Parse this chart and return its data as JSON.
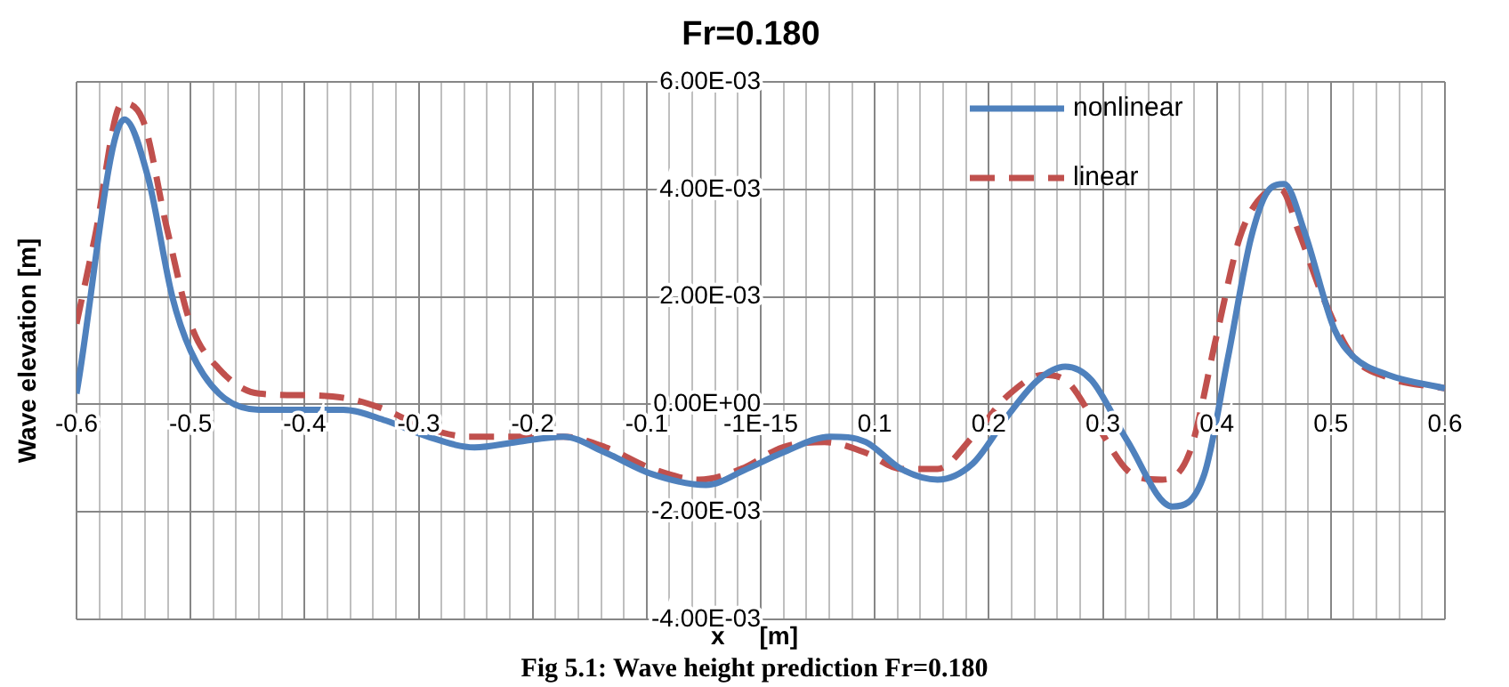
{
  "chart_data": {
    "type": "line",
    "title": "Fr=0.180",
    "xlabel": "x     [m]",
    "ylabel": "Wave elevation [m]",
    "annotations": [
      "Fig 5.1: Wave height prediction Fr=0.180"
    ],
    "xlim": [
      -0.6,
      0.6
    ],
    "ylim": [
      -0.004,
      0.006
    ],
    "xticks": [
      -0.6,
      {
        "value": -0.58,
        "label": null
      },
      {
        "value": -0.56,
        "label": null
      },
      {
        "value": -0.54,
        "label": null
      },
      {
        "value": -0.52,
        "label": null
      },
      -0.5,
      {
        "value": -0.48,
        "label": null
      },
      {
        "value": -0.46,
        "label": null
      },
      {
        "value": -0.44,
        "label": null
      },
      {
        "value": -0.42,
        "label": null
      },
      -0.4,
      {
        "value": -0.38,
        "label": null
      },
      {
        "value": -0.36,
        "label": null
      },
      {
        "value": -0.34,
        "label": null
      },
      {
        "value": -0.32,
        "label": null
      },
      -0.3,
      {
        "value": -0.28,
        "label": null
      },
      {
        "value": -0.26,
        "label": null
      },
      {
        "value": -0.24,
        "label": null
      },
      {
        "value": -0.22,
        "label": null
      },
      -0.2,
      {
        "value": -0.18,
        "label": null
      },
      {
        "value": -0.16,
        "label": null
      },
      {
        "value": -0.14,
        "label": null
      },
      {
        "value": -0.12,
        "label": null
      },
      -0.1,
      {
        "value": -0.08,
        "label": null
      },
      {
        "value": -0.06,
        "label": null
      },
      {
        "value": -0.04,
        "label": null
      },
      {
        "value": -0.02,
        "label": null
      },
      {
        "value": 0,
        "label": "-1E-15"
      },
      {
        "value": 0.02,
        "label": null
      },
      {
        "value": 0.04,
        "label": null
      },
      {
        "value": 0.06,
        "label": null
      },
      {
        "value": 0.08,
        "label": null
      },
      0.1,
      {
        "value": 0.12,
        "label": null
      },
      {
        "value": 0.14,
        "label": null
      },
      {
        "value": 0.16,
        "label": null
      },
      {
        "value": 0.18,
        "label": null
      },
      0.2,
      {
        "value": 0.22,
        "label": null
      },
      {
        "value": 0.24,
        "label": null
      },
      {
        "value": 0.26,
        "label": null
      },
      {
        "value": 0.28,
        "label": null
      },
      0.3,
      {
        "value": 0.32,
        "label": null
      },
      {
        "value": 0.34,
        "label": null
      },
      {
        "value": 0.36,
        "label": null
      },
      {
        "value": 0.38,
        "label": null
      },
      0.4,
      {
        "value": 0.42,
        "label": null
      },
      {
        "value": 0.44,
        "label": null
      },
      {
        "value": 0.46,
        "label": null
      },
      {
        "value": 0.48,
        "label": null
      },
      0.5,
      {
        "value": 0.52,
        "label": null
      },
      {
        "value": 0.54,
        "label": null
      },
      {
        "value": 0.56,
        "label": null
      },
      {
        "value": 0.58,
        "label": null
      },
      0.6
    ],
    "yticks": [
      {
        "value": -0.004,
        "label": "-4.00E-03"
      },
      {
        "value": -0.002,
        "label": "-2.00E-03"
      },
      {
        "value": 0,
        "label": "0.00E+00"
      },
      {
        "value": 0.002,
        "label": "2.00E-03"
      },
      {
        "value": 0.004,
        "label": "4.00E-03"
      },
      {
        "value": 0.006,
        "label": "6.00E-03"
      }
    ],
    "grid": true,
    "legend": "top right",
    "marker": "none",
    "series": [
      {
        "name": "nonlinear",
        "color": "#4f81bd",
        "line_style": "solid",
        "x": [
          -0.6,
          -0.558,
          -0.537,
          -0.516,
          -0.5,
          -0.475,
          -0.44,
          -0.397,
          -0.366,
          -0.329,
          -0.292,
          -0.251,
          -0.214,
          -0.173,
          -0.136,
          -0.095,
          -0.048,
          -0.012,
          0.019,
          0.061,
          0.092,
          0.123,
          0.155,
          0.186,
          0.217,
          0.243,
          0.267,
          0.29,
          0.321,
          0.361,
          0.389,
          0.41,
          0.43,
          0.446,
          0.459,
          0.477,
          0.503,
          0.519,
          0.55,
          0.6
        ],
        "values": [
          0.0002,
          0.0053,
          0.0042,
          0.002,
          0.001,
          0.0002,
          -0.0001,
          -0.0001,
          -0.0001,
          -0.0003,
          -0.0006,
          -0.0008,
          -0.0007,
          -0.0006,
          -0.0009,
          -0.0013,
          -0.0015,
          -0.0012,
          -0.0009,
          -0.0006,
          -0.0007,
          -0.0012,
          -0.0014,
          -0.0011,
          -0.0002,
          0.00045,
          0.0007,
          0.00045,
          -0.00066,
          -0.0019,
          -0.0013,
          0.0009,
          0.0031,
          0.004,
          0.0041,
          0.0032,
          0.0014,
          0.0009,
          0.00055,
          0.0003
        ]
      },
      {
        "name": "linear",
        "color": "#c0504d",
        "line_style": "dashed",
        "x": [
          -0.6,
          -0.584,
          -0.56,
          -0.542,
          -0.521,
          -0.5,
          -0.475,
          -0.44,
          -0.397,
          -0.36,
          -0.329,
          -0.298,
          -0.256,
          -0.214,
          -0.173,
          -0.136,
          -0.095,
          -0.054,
          -0.017,
          0.019,
          0.056,
          0.092,
          0.123,
          0.155,
          0.186,
          0.217,
          0.248,
          0.27,
          0.295,
          0.326,
          0.352,
          0.376,
          0.4,
          0.42,
          0.441,
          0.456,
          0.472,
          0.493,
          0.519,
          0.55,
          0.6
        ],
        "values": [
          0.0015,
          0.0031,
          0.0056,
          0.0053,
          0.0033,
          0.0015,
          0.00066,
          0.0002,
          0.00017,
          0.0001,
          -0.0001,
          -0.0004,
          -0.0006,
          -0.0006,
          -0.0006,
          -0.0008,
          -0.0012,
          -0.0014,
          -0.0012,
          -0.0008,
          -0.0007,
          -0.0009,
          -0.0012,
          -0.0012,
          -0.0006,
          0.00017,
          0.00055,
          0.0004,
          -0.0004,
          -0.0013,
          -0.0014,
          -0.0009,
          0.0013,
          0.0031,
          0.0039,
          0.004,
          0.0032,
          0.002,
          0.0009,
          0.0005,
          0.0003
        ]
      }
    ]
  }
}
